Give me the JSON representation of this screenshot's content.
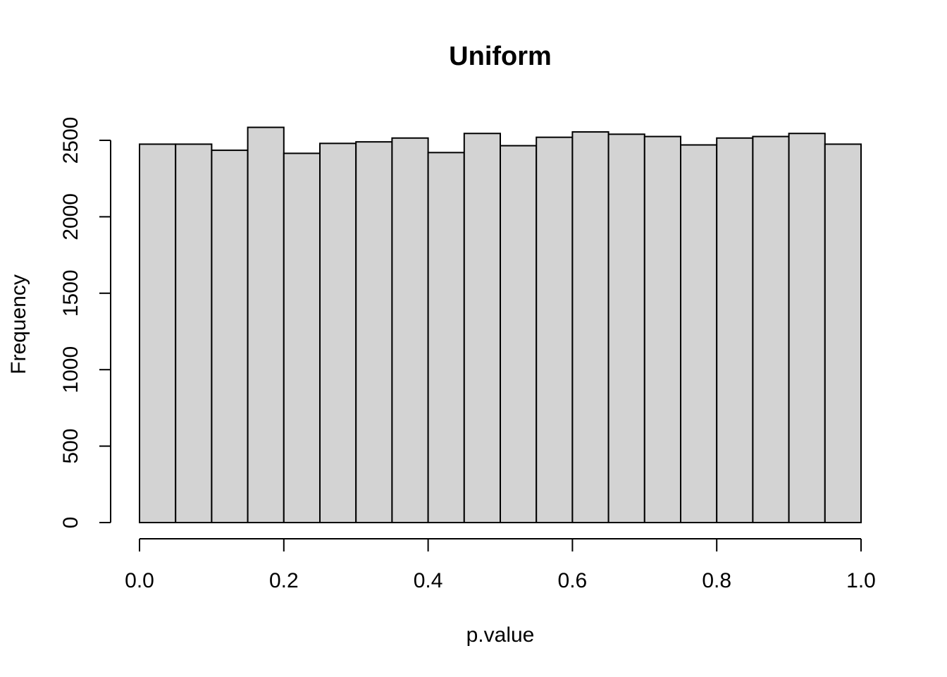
{
  "chart_data": {
    "type": "bar",
    "title": "Uniform",
    "xlabel": "p.value",
    "ylabel": "Frequency",
    "bin_edges": [
      0.0,
      0.05,
      0.1,
      0.15,
      0.2,
      0.25,
      0.3,
      0.35,
      0.4,
      0.45,
      0.5,
      0.55,
      0.6,
      0.65,
      0.7,
      0.75,
      0.8,
      0.85,
      0.9,
      0.95,
      1.0
    ],
    "values": [
      2475,
      2475,
      2435,
      2585,
      2415,
      2480,
      2490,
      2515,
      2420,
      2545,
      2465,
      2520,
      2555,
      2540,
      2525,
      2470,
      2515,
      2525,
      2545,
      2475
    ],
    "xlim": [
      0,
      1
    ],
    "ylim": [
      0,
      2600
    ],
    "x_ticks": [
      0.0,
      0.2,
      0.4,
      0.6,
      0.8,
      1.0
    ],
    "x_tick_labels": [
      "0.0",
      "0.2",
      "0.4",
      "0.6",
      "0.8",
      "1.0"
    ],
    "y_ticks": [
      0,
      500,
      1000,
      1500,
      2000,
      2500
    ],
    "y_tick_labels": [
      "0",
      "500",
      "1000",
      "1500",
      "2000",
      "2500"
    ],
    "bar_color": "#d3d3d3",
    "edge_color": "#000000",
    "grid": false,
    "legend": "none"
  }
}
